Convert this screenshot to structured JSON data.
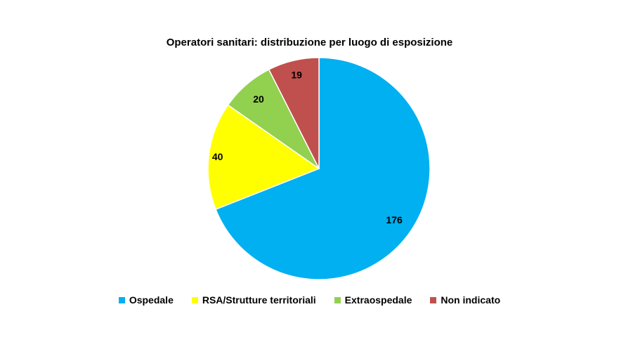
{
  "chart_data": {
    "type": "pie",
    "title": "Operatori sanitari: distribuzione per luogo di esposizione",
    "categories": [
      "Ospedale",
      "RSA/Strutture territoriali",
      "Extraospedale",
      "Non indicato"
    ],
    "values": [
      176,
      40,
      20,
      19
    ],
    "data_labels": [
      "176",
      "40",
      "20",
      "19"
    ],
    "colors": [
      "#00B0F0",
      "#FFFF00",
      "#92D050",
      "#C0504D"
    ],
    "legend_position": "bottom",
    "start_angle_deg": 0,
    "direction": "clockwise"
  }
}
